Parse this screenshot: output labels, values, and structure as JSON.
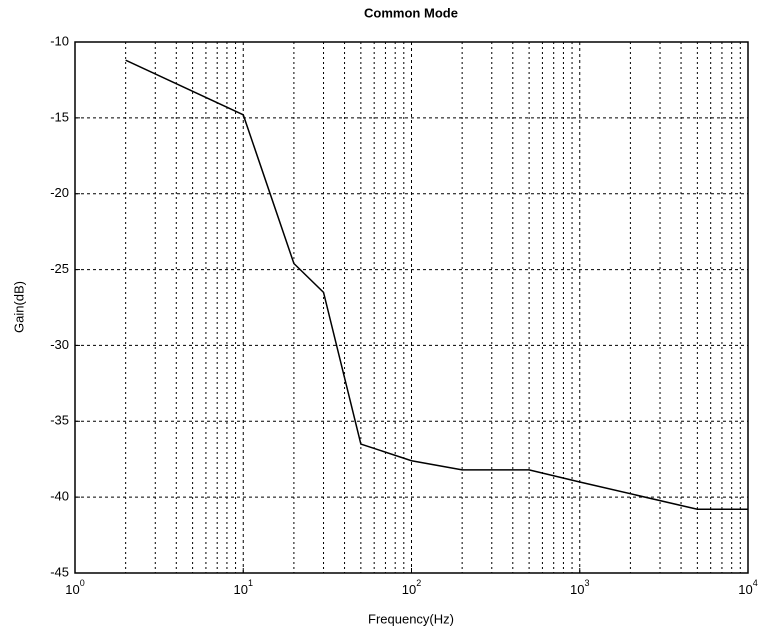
{
  "chart_data": {
    "type": "line",
    "title": "Common Mode",
    "x_label": "Frequency(Hz)",
    "y_label": "Gain(dB)",
    "x": [
      2,
      10,
      20,
      30,
      50,
      100,
      200,
      500,
      1000,
      5000,
      10000
    ],
    "series": [
      {
        "color": "#000000",
        "values": [
          -11.2,
          -14.8,
          -24.6,
          -26.5,
          -36.5,
          -37.6,
          -38.2,
          -38.2,
          -39.0,
          -40.8,
          -40.8
        ]
      }
    ],
    "x_log": true,
    "xlim": [
      1,
      10000
    ],
    "xticks": [
      {
        "value": 1,
        "label": "10",
        "exponent": "0"
      },
      {
        "value": 10,
        "label": "10",
        "exponent": "1"
      },
      {
        "value": 100,
        "label": "10",
        "exponent": "2"
      },
      {
        "value": 1000,
        "label": "10",
        "exponent": "3"
      },
      {
        "value": 10000,
        "label": "10",
        "exponent": "4"
      }
    ],
    "xminorticks": [
      2,
      3,
      4,
      5,
      6,
      7,
      8,
      9,
      20,
      30,
      40,
      50,
      60,
      70,
      80,
      90,
      200,
      300,
      400,
      500,
      600,
      700,
      800,
      900,
      2000,
      3000,
      4000,
      5000,
      6000,
      7000,
      8000,
      9000
    ],
    "ylim": [
      -45,
      -10
    ],
    "yticks": [
      -45,
      -40,
      -35,
      -30,
      -25,
      -20,
      -15,
      -10
    ],
    "grid": true
  }
}
